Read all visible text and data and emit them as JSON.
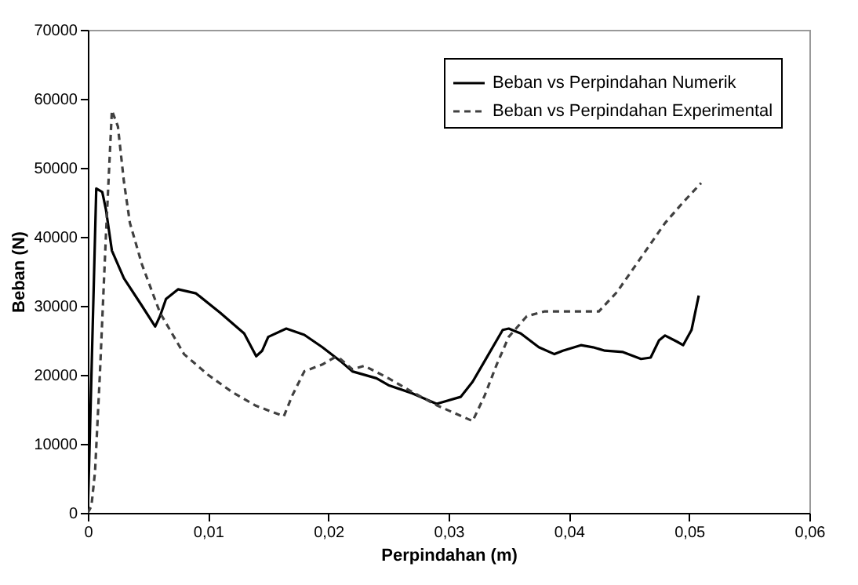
{
  "chart_data": {
    "type": "line",
    "xlabel": "Perpindahan (m)",
    "ylabel": "Beban (N)",
    "xlim": [
      0,
      0.06
    ],
    "ylim": [
      0,
      70000
    ],
    "xticks": [
      {
        "value": 0,
        "label": "0"
      },
      {
        "value": 0.01,
        "label": "0,01"
      },
      {
        "value": 0.02,
        "label": "0,02"
      },
      {
        "value": 0.03,
        "label": "0,03"
      },
      {
        "value": 0.04,
        "label": "0,04"
      },
      {
        "value": 0.05,
        "label": "0,05"
      },
      {
        "value": 0.06,
        "label": "0,06"
      }
    ],
    "yticks": [
      0,
      10000,
      20000,
      30000,
      40000,
      50000,
      60000,
      70000
    ],
    "grid": false,
    "legend": "top right",
    "series": [
      {
        "name": "Beban vs Perpindahan Numerik",
        "color": "#000000",
        "line_style": "solid",
        "x": [
          0,
          0.0003,
          0.0007,
          0.0012,
          0.0015,
          0.002,
          0.003,
          0.0045,
          0.0056,
          0.006,
          0.0065,
          0.0075,
          0.009,
          0.011,
          0.013,
          0.014,
          0.0145,
          0.015,
          0.0165,
          0.018,
          0.0195,
          0.021,
          0.022,
          0.024,
          0.025,
          0.027,
          0.029,
          0.031,
          0.032,
          0.033,
          0.0345,
          0.035,
          0.036,
          0.0375,
          0.0388,
          0.0395,
          0.041,
          0.042,
          0.043,
          0.0445,
          0.046,
          0.0468,
          0.0475,
          0.048,
          0.049,
          0.0495,
          0.0502,
          0.0508
        ],
        "values": [
          0,
          20000,
          47000,
          46500,
          44000,
          38000,
          34000,
          30000,
          27000,
          28500,
          31000,
          32400,
          31800,
          29000,
          26000,
          22700,
          23500,
          25500,
          26700,
          25800,
          24000,
          22000,
          20500,
          19500,
          18500,
          17300,
          15800,
          16800,
          19000,
          22000,
          26500,
          26700,
          26000,
          24000,
          23000,
          23500,
          24300,
          24000,
          23500,
          23300,
          22300,
          22500,
          25000,
          25700,
          24800,
          24300,
          26500,
          31500
        ]
      },
      {
        "name": "Beban vs Perpindahan Experimental",
        "color": "#404040",
        "line_style": "dashed",
        "x": [
          0,
          0.0003,
          0.0006,
          0.001,
          0.0015,
          0.002,
          0.0025,
          0.003,
          0.0035,
          0.0045,
          0.006,
          0.008,
          0.01,
          0.012,
          0.014,
          0.0163,
          0.017,
          0.018,
          0.0195,
          0.0205,
          0.021,
          0.022,
          0.023,
          0.025,
          0.027,
          0.029,
          0.032,
          0.033,
          0.034,
          0.035,
          0.0365,
          0.038,
          0.0425,
          0.044,
          0.046,
          0.048,
          0.0495,
          0.051
        ],
        "values": [
          0,
          1000,
          6000,
          20000,
          40000,
          58300,
          56000,
          48000,
          42000,
          36000,
          29000,
          23000,
          20000,
          17500,
          15500,
          14000,
          17000,
          20500,
          21500,
          22500,
          22300,
          20800,
          21300,
          19500,
          17500,
          15600,
          13300,
          17000,
          21500,
          25500,
          28500,
          29200,
          29200,
          32000,
          37000,
          42000,
          45000,
          47800
        ]
      }
    ]
  }
}
